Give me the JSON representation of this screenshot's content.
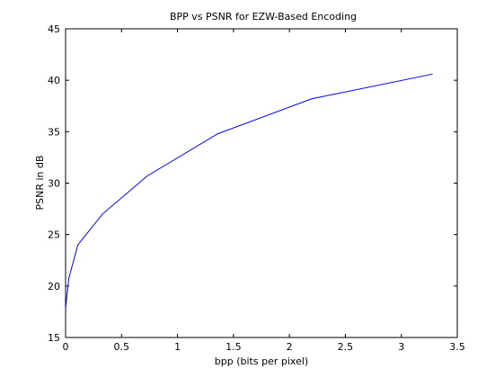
{
  "chart_data": {
    "type": "line",
    "title": "BPP vs PSNR for EZW-Based Encoding",
    "xlabel": "bpp (bits per pixel)",
    "ylabel": "PSNR in dB",
    "xlim": [
      0,
      3.5
    ],
    "ylim": [
      15,
      45
    ],
    "xticks": [
      0,
      0.5,
      1,
      1.5,
      2,
      2.5,
      3,
      3.5
    ],
    "xtick_labels": [
      "0",
      "0.5",
      "1",
      "1.5",
      "2",
      "2.5",
      "3",
      "3.5"
    ],
    "yticks": [
      15,
      20,
      25,
      30,
      35,
      40,
      45
    ],
    "ytick_labels": [
      "15",
      "20",
      "25",
      "30",
      "35",
      "40",
      "45"
    ],
    "grid": false,
    "series": [
      {
        "color": "#0000ff",
        "x": [
          0.0,
          0.01,
          0.03,
          0.06,
          0.11,
          0.33,
          0.73,
          1.36,
          2.2,
          3.28
        ],
        "y": [
          17.8,
          18.9,
          20.8,
          22.0,
          24.0,
          27.0,
          30.7,
          34.8,
          38.2,
          40.6
        ]
      }
    ]
  }
}
